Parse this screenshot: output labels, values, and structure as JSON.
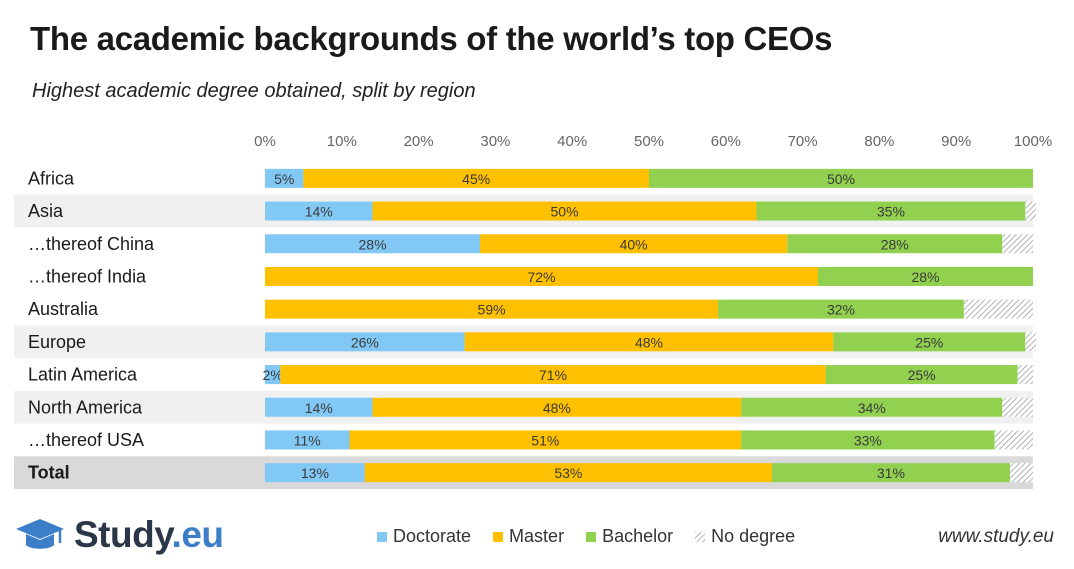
{
  "header": {
    "title": "The academic backgrounds of the world’s top CEOs",
    "subtitle": "Highest academic degree obtained, split by region"
  },
  "colors": {
    "doctorate": "#82c8f5",
    "master": "#ffc000",
    "bachelor": "#92d050",
    "no_degree": "#bbbbbb",
    "row_shade": "#f0f0f0",
    "total_shade": "#d9d9d9",
    "logo_dark": "#2b3648",
    "logo_blue": "#3d7ec9"
  },
  "chart_data": {
    "type": "bar",
    "orientation": "horizontal",
    "stacked": true,
    "title": "The academic backgrounds of the world’s top CEOs",
    "subtitle": "Highest academic degree obtained, split by region",
    "xlim": [
      0,
      100
    ],
    "ticks": [
      "0%",
      "10%",
      "20%",
      "30%",
      "40%",
      "50%",
      "60%",
      "70%",
      "80%",
      "90%",
      "100%"
    ],
    "series_names": [
      "Doctorate",
      "Master",
      "Bachelor",
      "No degree"
    ],
    "rows": [
      {
        "label": "Africa",
        "values": [
          5,
          45,
          50,
          0
        ],
        "labels": [
          "5%",
          "45%",
          "50%",
          ""
        ],
        "shade": false,
        "total": false
      },
      {
        "label": "Asia",
        "values": [
          14,
          50,
          35,
          1.4
        ],
        "labels": [
          "14%",
          "50%",
          "35%",
          ""
        ],
        "shade": true,
        "total": false
      },
      {
        "label": "…thereof China",
        "values": [
          28,
          40,
          28,
          4
        ],
        "labels": [
          "28%",
          "40%",
          "28%",
          ""
        ],
        "shade": false,
        "total": false
      },
      {
        "label": "…thereof India",
        "values": [
          0,
          72,
          28,
          0
        ],
        "labels": [
          "",
          "72%",
          "28%",
          ""
        ],
        "shade": false,
        "total": false
      },
      {
        "label": "Australia",
        "values": [
          0,
          59,
          32,
          9
        ],
        "labels": [
          "",
          "59%",
          "32%",
          ""
        ],
        "shade": false,
        "total": false
      },
      {
        "label": "Europe",
        "values": [
          26,
          48,
          25,
          1.4
        ],
        "labels": [
          "26%",
          "48%",
          "25%",
          ""
        ],
        "shade": true,
        "total": false
      },
      {
        "label": "Latin America",
        "values": [
          2,
          71,
          25,
          2
        ],
        "labels": [
          "2%",
          "71%",
          "25%",
          ""
        ],
        "shade": false,
        "total": false
      },
      {
        "label": "North America",
        "values": [
          14,
          48,
          34,
          4
        ],
        "labels": [
          "14%",
          "48%",
          "34%",
          ""
        ],
        "shade": true,
        "total": false
      },
      {
        "label": "…thereof USA",
        "values": [
          11,
          51,
          33,
          5
        ],
        "labels": [
          "11%",
          "51%",
          "33%",
          ""
        ],
        "shade": false,
        "total": false
      },
      {
        "label": "Total",
        "values": [
          13,
          53,
          31,
          3
        ],
        "labels": [
          "13%",
          "53%",
          "31%",
          ""
        ],
        "shade": true,
        "total": true
      }
    ]
  },
  "legend": {
    "doctorate": "Doctorate",
    "master": "Master",
    "bachelor": "Bachelor",
    "no_degree": "No degree"
  },
  "footer": {
    "logo_main": "Study",
    "logo_tld": ".eu",
    "website": "www.study.eu"
  }
}
